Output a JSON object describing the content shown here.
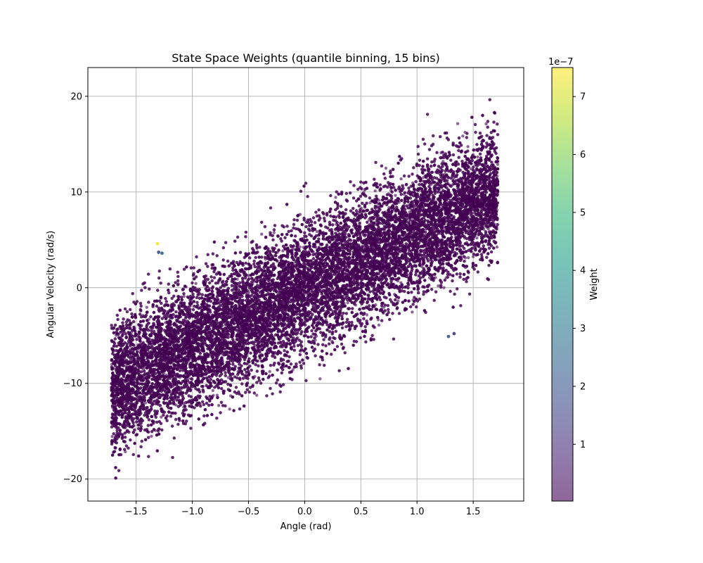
{
  "chart_data": {
    "type": "scatter",
    "title": "State Space Weights (quantile binning, 15 bins)",
    "xlabel": "Angle (rad)",
    "ylabel": "Angular Velocity (rad/s)",
    "xlim": [
      -1.93,
      1.95
    ],
    "ylim": [
      -22.3,
      23.0
    ],
    "xticks": [
      -1.5,
      -1.0,
      -0.5,
      0.0,
      0.5,
      1.0,
      1.5
    ],
    "xtick_labels": [
      "−1.5",
      "−1.0",
      "−0.5",
      "0.0",
      "0.5",
      "1.0",
      "1.5"
    ],
    "yticks": [
      -20,
      -10,
      0,
      10,
      20
    ],
    "ytick_labels": [
      "−20",
      "−10",
      "0",
      "10",
      "20"
    ],
    "grid": true,
    "point_alpha": 0.6,
    "colormap": "viridis",
    "colors": {
      "viridis": [
        "#440154",
        "#482878",
        "#3e4989",
        "#31688e",
        "#26828e",
        "#1f9e89",
        "#35b779",
        "#6ece58",
        "#b5de2b",
        "#fde725"
      ],
      "grid": "#b0b0b0",
      "axis": "#000000"
    },
    "point_distribution": {
      "n_points": 24000,
      "x_range": [
        -1.72,
        1.72
      ],
      "slope": 6.0,
      "y_std": 4.5,
      "y_range": [
        -20.0,
        21.0
      ]
    },
    "highlight_points": [
      {
        "x": -1.31,
        "y": 4.6,
        "weight": 7.4e-07
      },
      {
        "x": -1.27,
        "y": 3.6,
        "weight": 2.3e-07
      },
      {
        "x": -1.3,
        "y": 3.7,
        "weight": 1.8e-07
      },
      {
        "x": 1.28,
        "y": -5.1,
        "weight": 2e-07
      },
      {
        "x": 1.33,
        "y": -4.8,
        "weight": 1.2e-07
      }
    ],
    "colorbar": {
      "label": "Weight",
      "exponent_label": "1e−7",
      "range": [
        2e-09,
        7.5e-07
      ],
      "ticks": [
        1,
        2,
        3,
        4,
        5,
        6,
        7
      ],
      "tick_labels": [
        "1",
        "2",
        "3",
        "4",
        "5",
        "6",
        "7"
      ]
    }
  }
}
